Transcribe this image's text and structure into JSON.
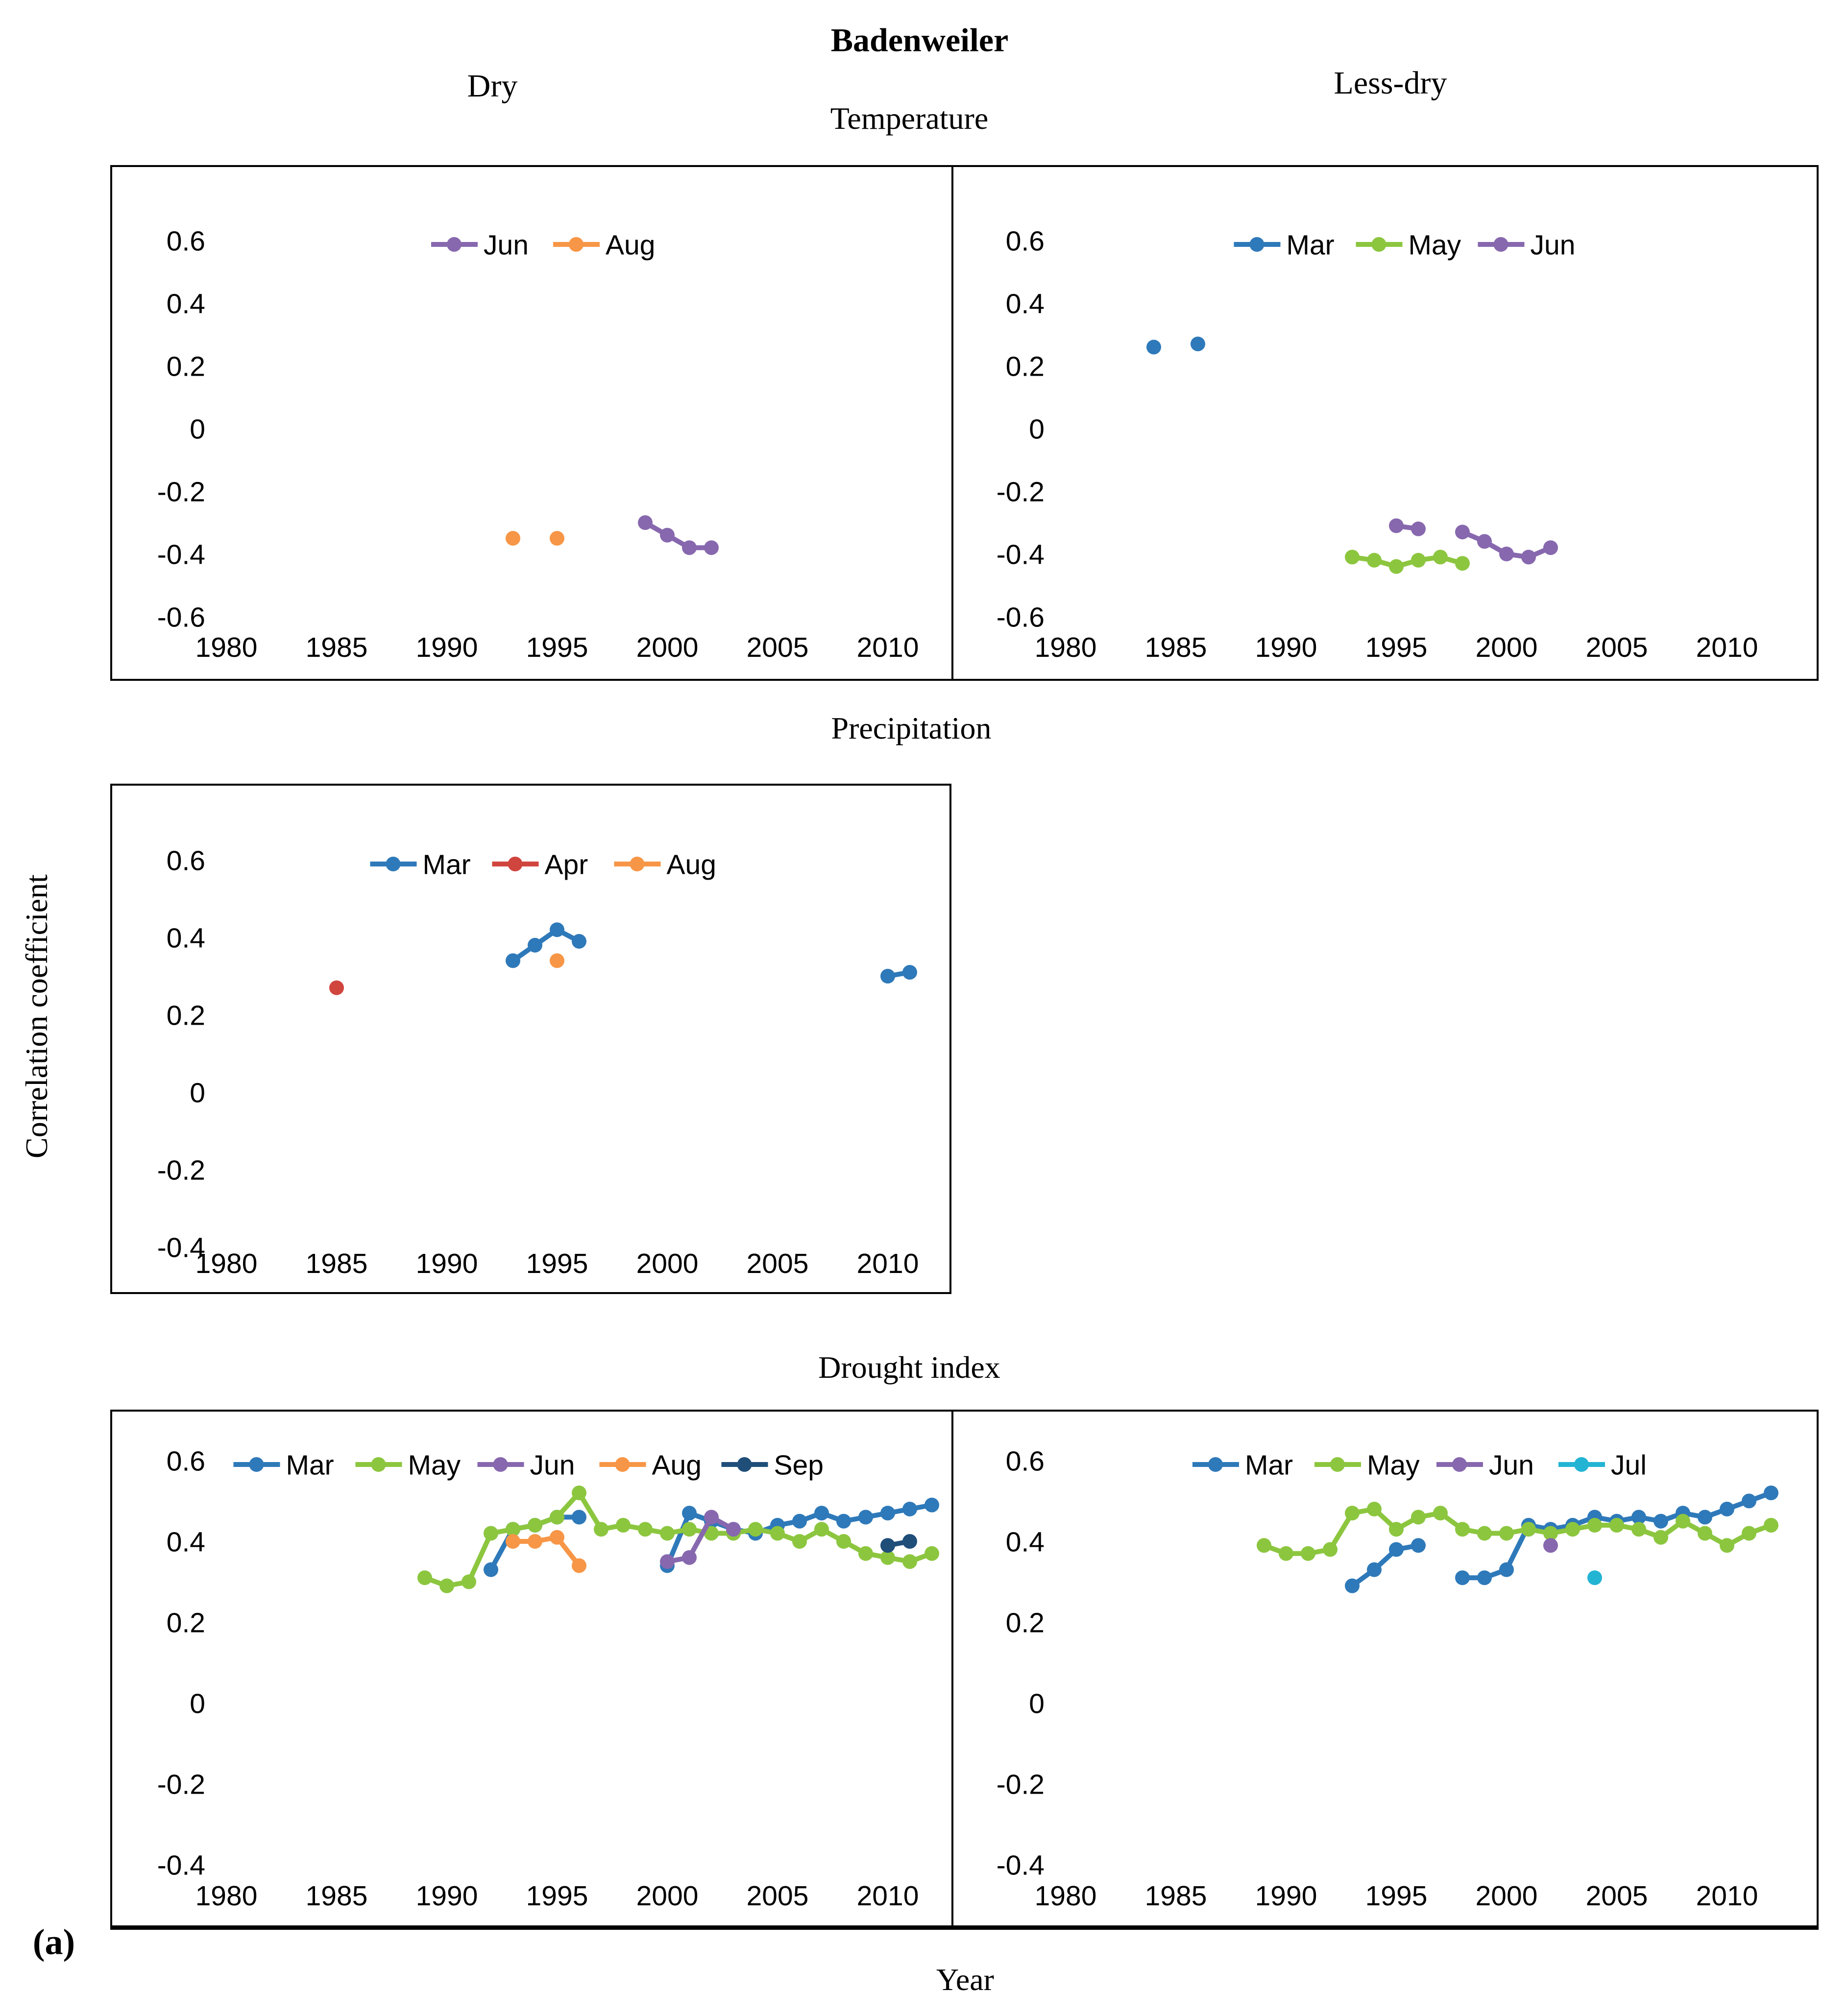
{
  "title": "Badenweiler",
  "column_headers": {
    "left": "Dry",
    "right": "Less-dry"
  },
  "row_headers": {
    "temperature": "Temperature",
    "precipitation": "Precipitation",
    "drought": "Drought index"
  },
  "y_axis_label": "Correlation coefficient",
  "x_axis_label": "Year",
  "panel_label": "(a)",
  "colors": {
    "Mar": "#2E79B9",
    "Apr": "#D0453E",
    "May": "#8CC63F",
    "Jun": "#8768AE",
    "Jul": "#23B4D4",
    "Aug": "#F79646",
    "Sep": "#1F4E79"
  },
  "axes": {
    "x_ticks": [
      "1980",
      "1985",
      "1990",
      "1995",
      "2000",
      "2005",
      "2010"
    ],
    "x_range": [
      1975,
      2013.5
    ],
    "grid": "off",
    "legend_position": "top-inside"
  },
  "chart_data": [
    {
      "id": "temperature_dry",
      "type": "line",
      "row": "Temperature",
      "column": "Dry",
      "ylabel": "Correlation coefficient",
      "xlabel": "Year",
      "ylim": [
        -0.6,
        0.6
      ],
      "y_ticks": [
        "0.6",
        "0.4",
        "0.2",
        "0",
        "-0.2",
        "-0.4",
        "-0.6"
      ],
      "legend": [
        "Jun",
        "Aug"
      ],
      "series": [
        {
          "name": "Jun",
          "runs": [
            [
              [
                1999,
                -0.3
              ],
              [
                2000,
                -0.34
              ],
              [
                2001,
                -0.38
              ],
              [
                2002,
                -0.38
              ]
            ]
          ]
        },
        {
          "name": "Aug",
          "runs": [
            [
              [
                1993,
                -0.35
              ]
            ],
            [
              [
                1995,
                -0.35
              ]
            ]
          ]
        }
      ]
    },
    {
      "id": "temperature_lessdry",
      "type": "line",
      "row": "Temperature",
      "column": "Less-dry",
      "ylabel": "Correlation coefficient",
      "xlabel": "Year",
      "ylim": [
        -0.6,
        0.6
      ],
      "y_ticks": [
        "0.6",
        "0.4",
        "0.2",
        "0",
        "-0.2",
        "-0.4",
        "-0.6"
      ],
      "legend": [
        "Mar",
        "May",
        "Jun"
      ],
      "series": [
        {
          "name": "Mar",
          "runs": [
            [
              [
                1984,
                0.26
              ]
            ],
            [
              [
                1986,
                0.27
              ]
            ]
          ]
        },
        {
          "name": "May",
          "runs": [
            [
              [
                1993,
                -0.41
              ],
              [
                1994,
                -0.42
              ],
              [
                1995,
                -0.44
              ],
              [
                1996,
                -0.42
              ],
              [
                1997,
                -0.41
              ],
              [
                1998,
                -0.43
              ]
            ]
          ]
        },
        {
          "name": "Jun",
          "runs": [
            [
              [
                1995,
                -0.31
              ],
              [
                1996,
                -0.32
              ]
            ],
            [
              [
                1998,
                -0.33
              ],
              [
                1999,
                -0.36
              ],
              [
                2000,
                -0.4
              ],
              [
                2001,
                -0.41
              ],
              [
                2002,
                -0.38
              ]
            ]
          ]
        }
      ]
    },
    {
      "id": "precipitation_dry",
      "type": "line",
      "row": "Precipitation",
      "column": "Dry",
      "ylabel": "Correlation coefficient",
      "xlabel": "Year",
      "ylim": [
        -0.4,
        0.6
      ],
      "y_ticks": [
        "0.6",
        "0.4",
        "0.2",
        "0",
        "-0.2",
        "-0.4"
      ],
      "legend": [
        "Mar",
        "Apr",
        "Aug"
      ],
      "series": [
        {
          "name": "Mar",
          "runs": [
            [
              [
                1993,
                0.34
              ],
              [
                1994,
                0.38
              ],
              [
                1995,
                0.42
              ],
              [
                1996,
                0.39
              ]
            ],
            [
              [
                2010,
                0.3
              ],
              [
                2011,
                0.31
              ]
            ]
          ]
        },
        {
          "name": "Apr",
          "runs": [
            [
              [
                1985,
                0.27
              ]
            ]
          ]
        },
        {
          "name": "Aug",
          "runs": [
            [
              [
                1995,
                0.34
              ]
            ]
          ]
        }
      ]
    },
    {
      "id": "drought_dry",
      "type": "line",
      "row": "Drought index",
      "column": "Dry",
      "ylabel": "Correlation coefficient",
      "xlabel": "Year",
      "ylim": [
        -0.4,
        0.6
      ],
      "y_ticks": [
        "0.6",
        "0.4",
        "0.2",
        "0",
        "-0.2",
        "-0.4"
      ],
      "legend": [
        "Mar",
        "May",
        "Jun",
        "Aug",
        "Sep"
      ],
      "series": [
        {
          "name": "Mar",
          "runs": [
            [
              [
                1992,
                0.33
              ],
              [
                1993,
                0.43
              ],
              [
                1994,
                0.44
              ],
              [
                1995,
                0.46
              ],
              [
                1996,
                0.46
              ]
            ],
            [
              [
                2000,
                0.34
              ],
              [
                2001,
                0.47
              ],
              [
                2002,
                0.45
              ],
              [
                2003,
                0.43
              ],
              [
                2004,
                0.42
              ],
              [
                2005,
                0.44
              ],
              [
                2006,
                0.45
              ],
              [
                2007,
                0.47
              ],
              [
                2008,
                0.45
              ],
              [
                2009,
                0.46
              ],
              [
                2010,
                0.47
              ],
              [
                2011,
                0.48
              ],
              [
                2012,
                0.49
              ]
            ]
          ]
        },
        {
          "name": "May",
          "runs": [
            [
              [
                1989,
                0.31
              ],
              [
                1990,
                0.29
              ],
              [
                1991,
                0.3
              ],
              [
                1992,
                0.42
              ],
              [
                1993,
                0.43
              ],
              [
                1994,
                0.44
              ],
              [
                1995,
                0.46
              ],
              [
                1996,
                0.52
              ],
              [
                1997,
                0.43
              ],
              [
                1998,
                0.44
              ],
              [
                1999,
                0.43
              ],
              [
                2000,
                0.42
              ],
              [
                2001,
                0.43
              ],
              [
                2002,
                0.42
              ],
              [
                2003,
                0.42
              ],
              [
                2004,
                0.43
              ],
              [
                2005,
                0.42
              ],
              [
                2006,
                0.4
              ],
              [
                2007,
                0.43
              ],
              [
                2008,
                0.4
              ],
              [
                2009,
                0.37
              ],
              [
                2010,
                0.36
              ],
              [
                2011,
                0.35
              ],
              [
                2012,
                0.37
              ]
            ]
          ]
        },
        {
          "name": "Jun",
          "runs": [
            [
              [
                2000,
                0.35
              ],
              [
                2001,
                0.36
              ],
              [
                2002,
                0.46
              ],
              [
                2003,
                0.43
              ]
            ]
          ]
        },
        {
          "name": "Aug",
          "runs": [
            [
              [
                1993,
                0.4
              ],
              [
                1994,
                0.4
              ],
              [
                1995,
                0.41
              ],
              [
                1996,
                0.34
              ]
            ]
          ]
        },
        {
          "name": "Sep",
          "runs": [
            [
              [
                2010,
                0.39
              ],
              [
                2011,
                0.4
              ]
            ]
          ]
        }
      ]
    },
    {
      "id": "drought_lessdry",
      "type": "line",
      "row": "Drought index",
      "column": "Less-dry",
      "ylabel": "Correlation coefficient",
      "xlabel": "Year",
      "ylim": [
        -0.4,
        0.6
      ],
      "y_ticks": [
        "0.6",
        "0.4",
        "0.2",
        "0",
        "-0.2",
        "-0.4"
      ],
      "legend": [
        "Mar",
        "May",
        "Jun",
        "Jul"
      ],
      "series": [
        {
          "name": "Mar",
          "runs": [
            [
              [
                1993,
                0.29
              ],
              [
                1994,
                0.33
              ],
              [
                1995,
                0.38
              ],
              [
                1996,
                0.39
              ]
            ],
            [
              [
                1998,
                0.31
              ],
              [
                1999,
                0.31
              ],
              [
                2000,
                0.33
              ],
              [
                2001,
                0.44
              ],
              [
                2002,
                0.43
              ],
              [
                2003,
                0.44
              ],
              [
                2004,
                0.46
              ],
              [
                2005,
                0.45
              ],
              [
                2006,
                0.46
              ],
              [
                2007,
                0.45
              ],
              [
                2008,
                0.47
              ],
              [
                2009,
                0.46
              ],
              [
                2010,
                0.48
              ],
              [
                2011,
                0.5
              ],
              [
                2012,
                0.52
              ]
            ]
          ]
        },
        {
          "name": "May",
          "runs": [
            [
              [
                1989,
                0.39
              ],
              [
                1990,
                0.37
              ],
              [
                1991,
                0.37
              ],
              [
                1992,
                0.38
              ],
              [
                1993,
                0.47
              ],
              [
                1994,
                0.48
              ],
              [
                1995,
                0.43
              ],
              [
                1996,
                0.46
              ],
              [
                1997,
                0.47
              ],
              [
                1998,
                0.43
              ],
              [
                1999,
                0.42
              ],
              [
                2000,
                0.42
              ],
              [
                2001,
                0.43
              ],
              [
                2002,
                0.42
              ],
              [
                2003,
                0.43
              ],
              [
                2004,
                0.44
              ],
              [
                2005,
                0.44
              ],
              [
                2006,
                0.43
              ],
              [
                2007,
                0.41
              ],
              [
                2008,
                0.45
              ],
              [
                2009,
                0.42
              ],
              [
                2010,
                0.39
              ],
              [
                2011,
                0.42
              ],
              [
                2012,
                0.44
              ]
            ]
          ]
        },
        {
          "name": "Jun",
          "runs": [
            [
              [
                2002,
                0.39
              ]
            ]
          ]
        },
        {
          "name": "Jul",
          "runs": [
            [
              [
                2004,
                0.31
              ]
            ]
          ]
        }
      ]
    }
  ]
}
